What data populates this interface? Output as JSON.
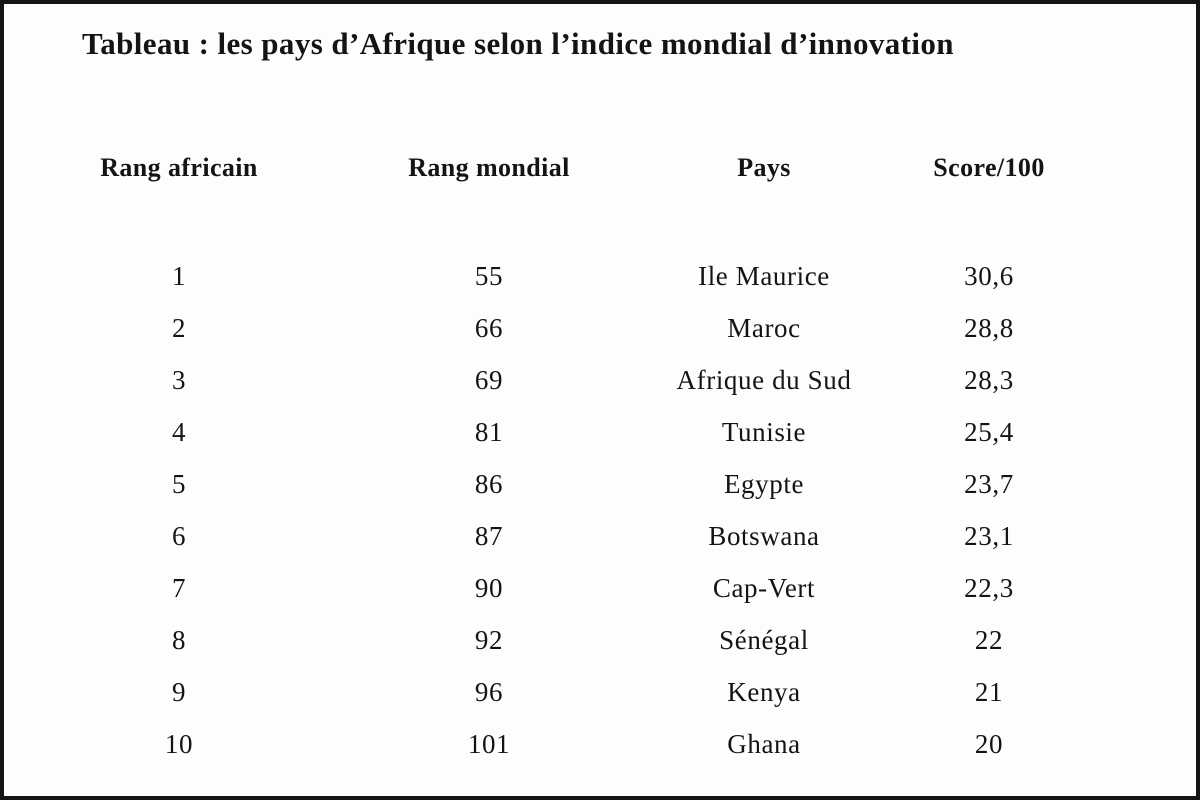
{
  "title": "Tableau : les pays d’Afrique selon l’indice mondial d’innovation",
  "columns": {
    "rang_africain": "Rang africain",
    "rang_mondial": "Rang mondial",
    "pays": "Pays",
    "score": "Score/100"
  },
  "rows": [
    {
      "rang_africain": "1",
      "rang_mondial": "55",
      "pays": "Ile Maurice",
      "score": "30,6"
    },
    {
      "rang_africain": "2",
      "rang_mondial": "66",
      "pays": "Maroc",
      "score": "28,8"
    },
    {
      "rang_africain": "3",
      "rang_mondial": "69",
      "pays": "Afrique du Sud",
      "score": "28,3"
    },
    {
      "rang_africain": "4",
      "rang_mondial": "81",
      "pays": "Tunisie",
      "score": "25,4"
    },
    {
      "rang_africain": "5",
      "rang_mondial": "86",
      "pays": "Egypte",
      "score": "23,7"
    },
    {
      "rang_africain": "6",
      "rang_mondial": "87",
      "pays": "Botswana",
      "score": "23,1"
    },
    {
      "rang_africain": "7",
      "rang_mondial": "90",
      "pays": "Cap-Vert",
      "score": "22,3"
    },
    {
      "rang_africain": "8",
      "rang_mondial": "92",
      "pays": "Sénégal",
      "score": "22"
    },
    {
      "rang_africain": "9",
      "rang_mondial": "96",
      "pays": "Kenya",
      "score": "21"
    },
    {
      "rang_africain": "10",
      "rang_mondial": "101",
      "pays": "Ghana",
      "score": "20"
    }
  ],
  "colors": {
    "text": "#141414",
    "background": "#fdfdfd",
    "frame_border": "#141414"
  },
  "chart_data": {
    "type": "table",
    "title": "Tableau : les pays d’Afrique selon l’indice mondial d’innovation",
    "columns": [
      "Rang africain",
      "Rang mondial",
      "Pays",
      "Score/100"
    ],
    "rows": [
      [
        1,
        55,
        "Ile Maurice",
        30.6
      ],
      [
        2,
        66,
        "Maroc",
        28.8
      ],
      [
        3,
        69,
        "Afrique du Sud",
        28.3
      ],
      [
        4,
        81,
        "Tunisie",
        25.4
      ],
      [
        5,
        86,
        "Egypte",
        23.7
      ],
      [
        6,
        87,
        "Botswana",
        23.1
      ],
      [
        7,
        90,
        "Cap-Vert",
        22.3
      ],
      [
        8,
        92,
        "Sénégal",
        22
      ],
      [
        9,
        96,
        "Kenya",
        21
      ],
      [
        10,
        101,
        "Ghana",
        20
      ]
    ],
    "layout_hints": {
      "column_alignment": "center",
      "gridlines": false,
      "decimal_separator_display": "comma"
    }
  }
}
